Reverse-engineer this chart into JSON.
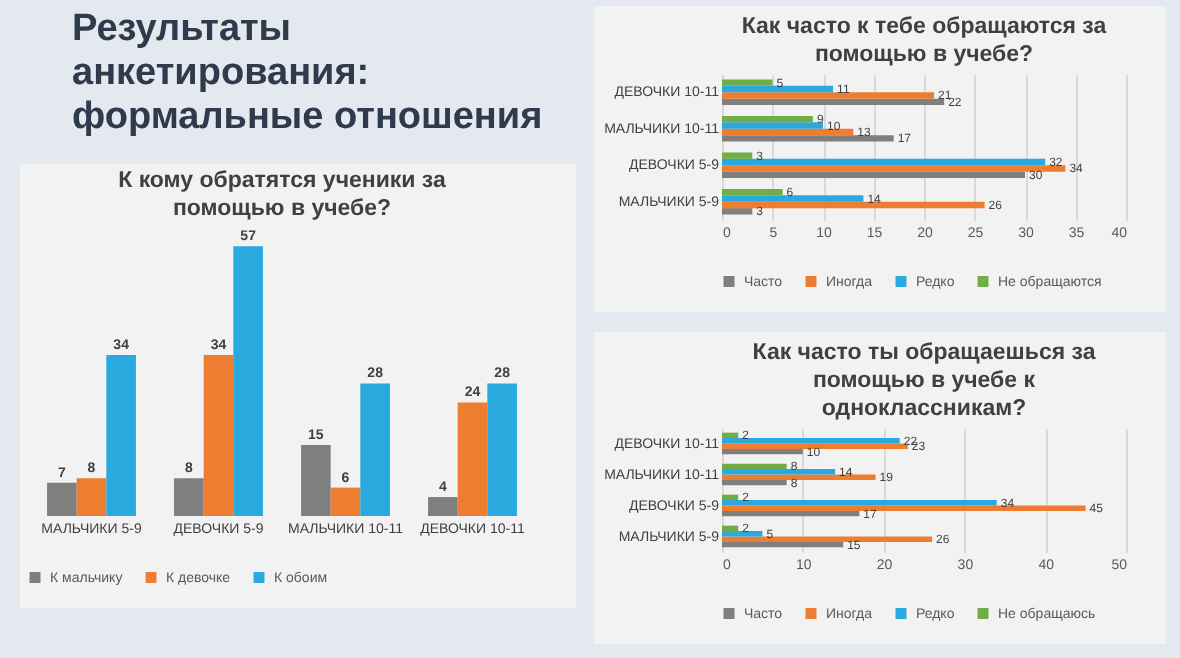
{
  "chart_data": [
    {
      "type": "other",
      "title": "Результаты анкетирования: формальные отношения"
    },
    {
      "type": "bar",
      "title": "К кому обратятся ученики за помощью в учебе?",
      "categories": [
        "МАЛЬЧИКИ 5-9",
        "ДЕВОЧКИ 5-9",
        "МАЛЬЧИКИ 10-11",
        "ДЕВОЧКИ 10-11"
      ],
      "series": [
        {
          "name": "К мальчику",
          "color": "#7f7f7f",
          "values": [
            7,
            8,
            15,
            4
          ]
        },
        {
          "name": "К девочке",
          "color": "#ed7d31",
          "values": [
            8,
            34,
            6,
            24
          ]
        },
        {
          "name": "К обоим",
          "color": "#2aa9df",
          "values": [
            34,
            57,
            28,
            28
          ]
        }
      ],
      "data_labels": true,
      "legend": "bottom"
    },
    {
      "type": "bar",
      "orientation": "horizontal",
      "title": "Как часто к тебе обращаются за помощью в учебе?",
      "categories": [
        "ДЕВОЧКИ 10-11",
        "МАЛЬЧИКИ 10-11",
        "ДЕВОЧКИ 5-9",
        "МАЛЬЧИКИ 5-9"
      ],
      "series": [
        {
          "name": "Часто",
          "color": "#7f7f7f",
          "values": [
            22,
            17,
            30,
            3
          ]
        },
        {
          "name": "Иногда",
          "color": "#ed7d31",
          "values": [
            21,
            13,
            34,
            26
          ]
        },
        {
          "name": "Редко",
          "color": "#2aa9df",
          "values": [
            11,
            10,
            32,
            14
          ]
        },
        {
          "name": "Не обращаются",
          "color": "#70ad47",
          "values": [
            5,
            9,
            3,
            6
          ]
        }
      ],
      "xlim": [
        0,
        40
      ],
      "xticks": [
        0,
        5,
        10,
        15,
        20,
        25,
        30,
        35,
        40
      ],
      "grid": "x",
      "data_labels": true,
      "legend": "bottom"
    },
    {
      "type": "bar",
      "orientation": "horizontal",
      "title": "Как часто ты обращаешься за помощью в учебе к одноклассникам?",
      "categories": [
        "ДЕВОЧКИ 10-11",
        "МАЛЬЧИКИ 10-11",
        "ДЕВОЧКИ 5-9",
        "МАЛЬЧИКИ 5-9"
      ],
      "series": [
        {
          "name": "Часто",
          "color": "#7f7f7f",
          "values": [
            10,
            8,
            17,
            15
          ]
        },
        {
          "name": "Иногда",
          "color": "#ed7d31",
          "values": [
            23,
            19,
            45,
            26
          ]
        },
        {
          "name": "Редко",
          "color": "#2aa9df",
          "values": [
            22,
            14,
            34,
            5
          ]
        },
        {
          "name": "Не обращаюсь",
          "color": "#70ad47",
          "values": [
            2,
            8,
            2,
            2
          ]
        }
      ],
      "xlim": [
        0,
        50
      ],
      "xticks": [
        0,
        10,
        20,
        30,
        40,
        50
      ],
      "grid": "x",
      "data_labels": true,
      "legend": "bottom"
    }
  ]
}
